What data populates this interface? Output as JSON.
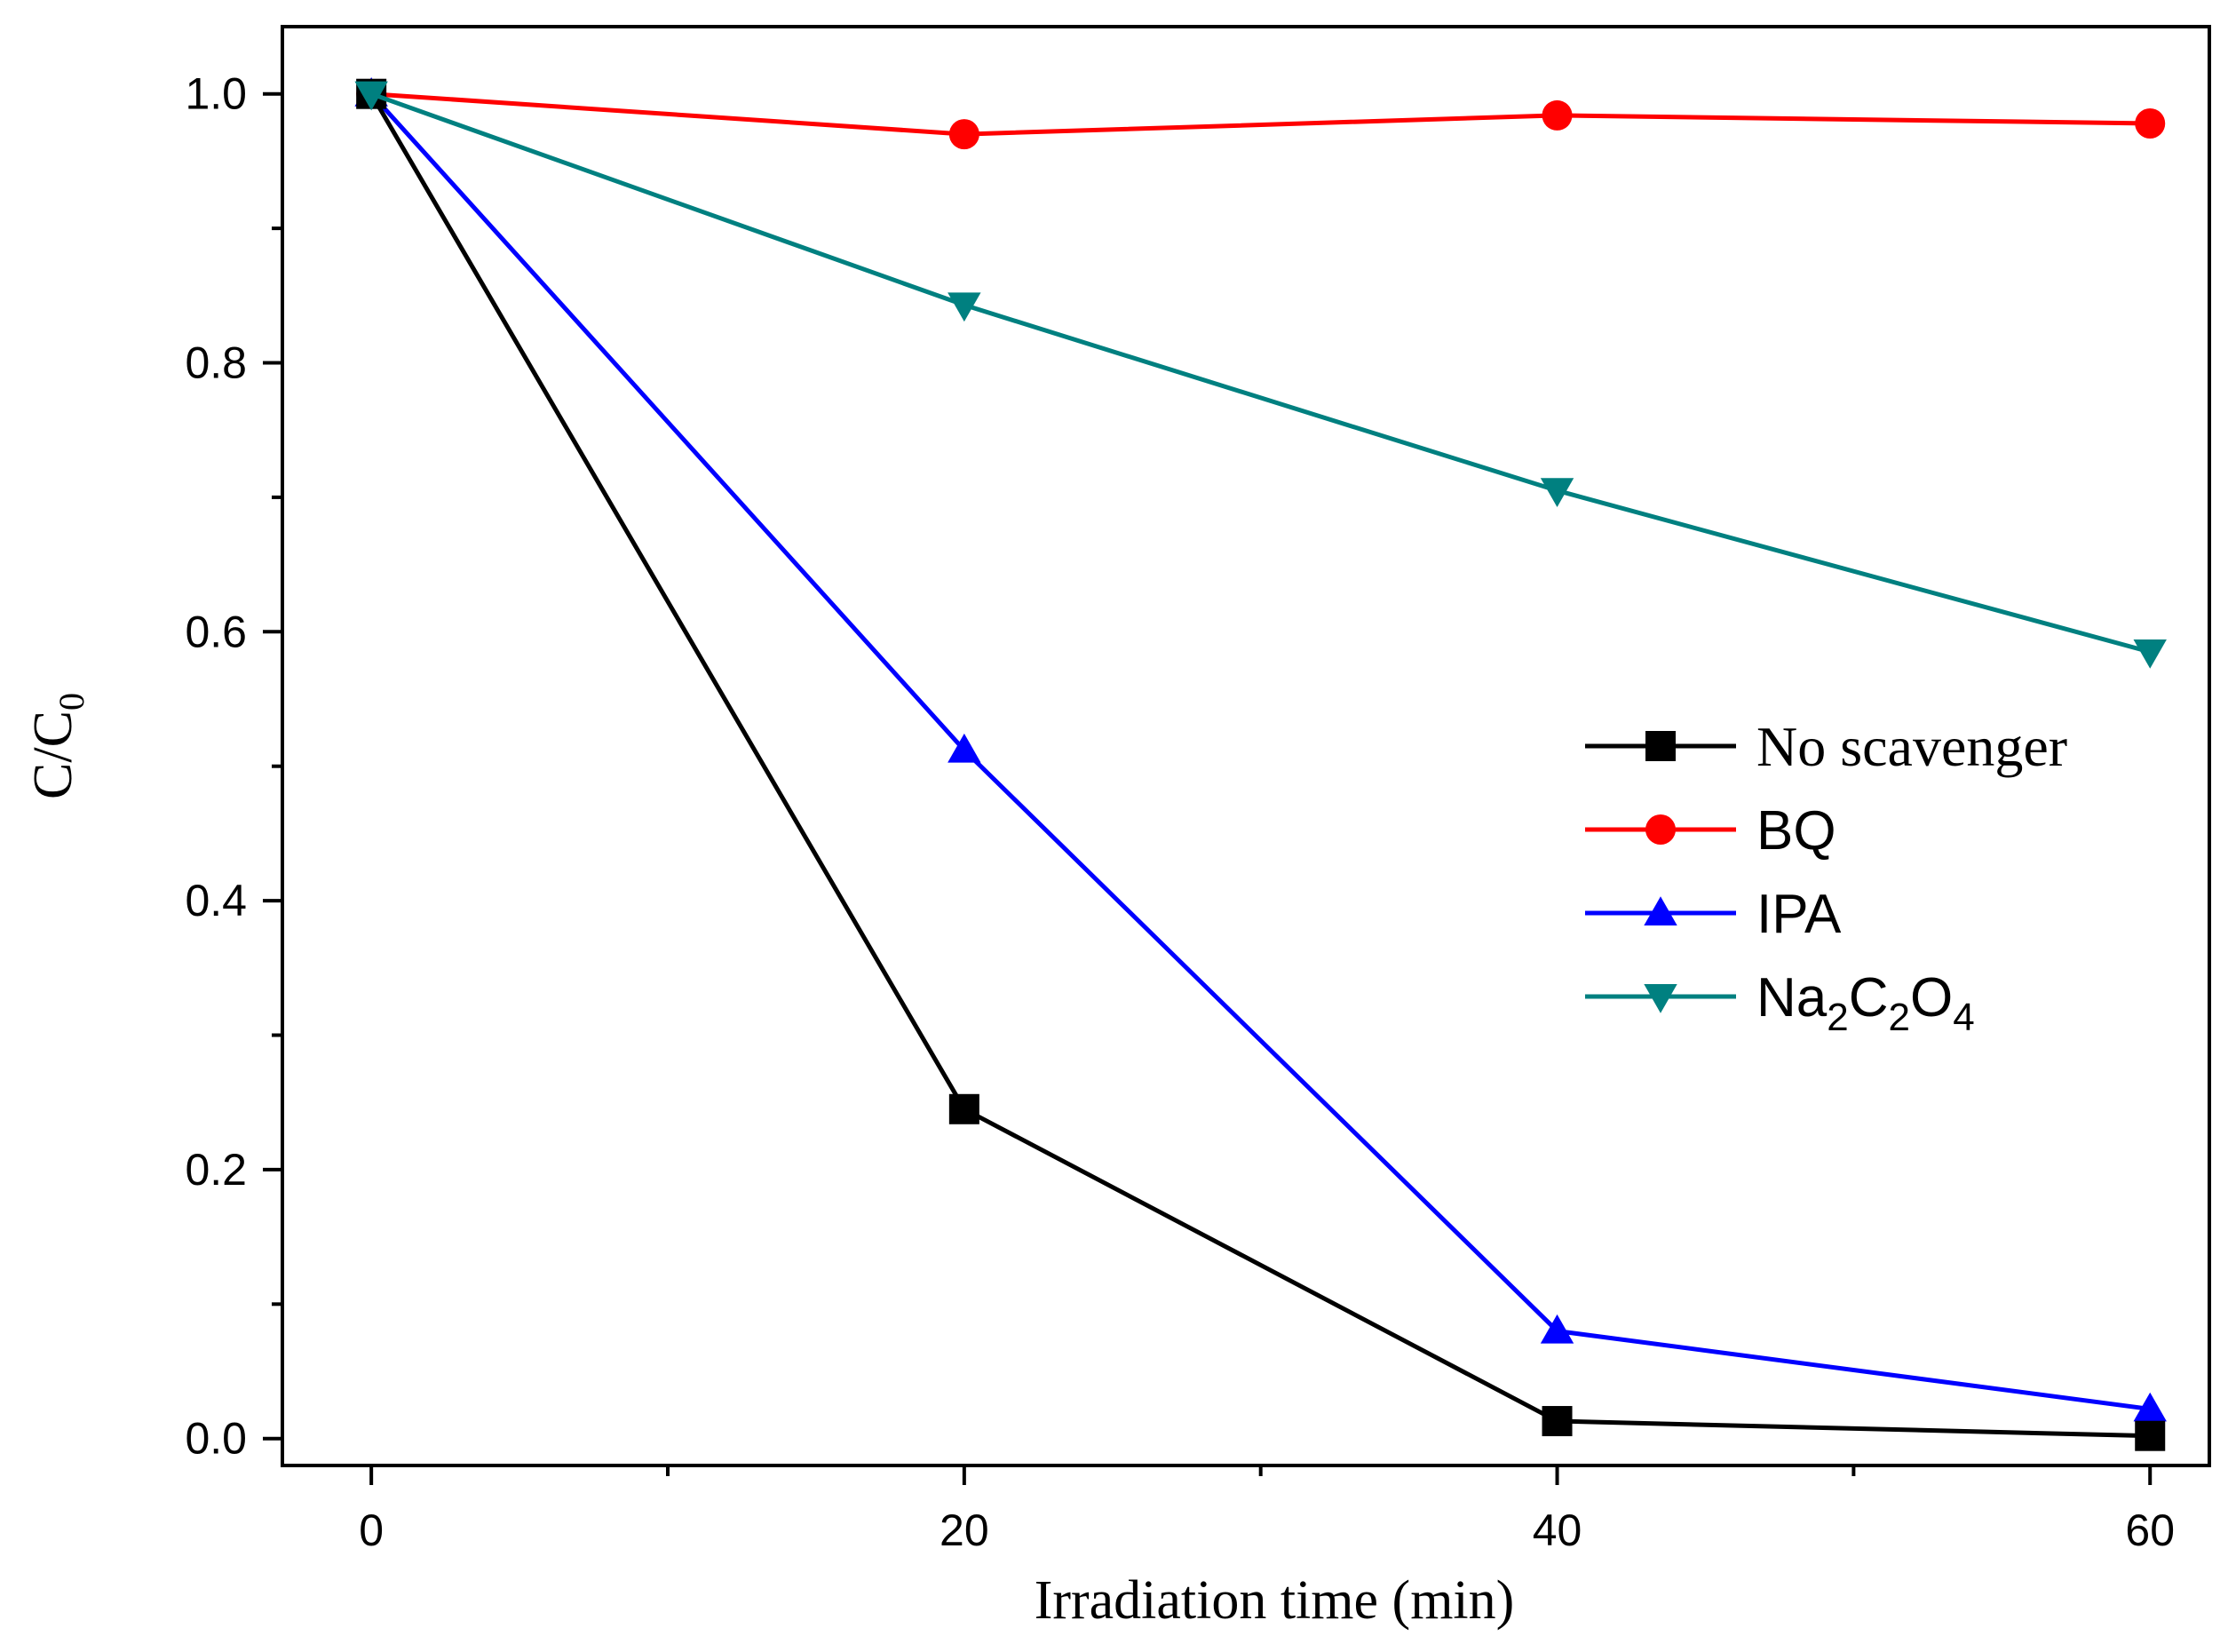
{
  "chart_data": {
    "type": "line",
    "title": "",
    "xlabel": "Irradiation time (min)",
    "ylabel": {
      "main": "C/C",
      "sub": "0"
    },
    "xlim": [
      -3,
      62
    ],
    "ylim": [
      -0.02,
      1.05
    ],
    "x_ticks": [
      0,
      20,
      40,
      60
    ],
    "x_minor_ticks": [
      10,
      30,
      50
    ],
    "y_ticks": [
      0.0,
      0.2,
      0.4,
      0.6,
      0.8,
      1.0
    ],
    "y_tick_labels": [
      "0.0",
      "0.2",
      "0.4",
      "0.6",
      "0.8",
      "1.0"
    ],
    "y_minor_ticks": [
      0.1,
      0.3,
      0.5,
      0.7,
      0.9
    ],
    "grid": false,
    "legend_position": "center-right",
    "series": [
      {
        "name": "No scavenger",
        "color": "#000000",
        "marker": "square",
        "x": [
          0,
          20,
          40,
          60
        ],
        "y": [
          1.0,
          0.245,
          0.013,
          0.002
        ]
      },
      {
        "name": "BQ",
        "color": "#ff0000",
        "marker": "circle",
        "x": [
          0,
          20,
          40,
          60
        ],
        "y": [
          1.0,
          0.97,
          0.984,
          0.978
        ]
      },
      {
        "name": "IPA",
        "color": "#0000ff",
        "marker": "triangle-up",
        "x": [
          0,
          20,
          40,
          60
        ],
        "y": [
          1.0,
          0.512,
          0.08,
          0.022
        ]
      },
      {
        "name": "Na2C2O4",
        "color": "#008080",
        "marker": "triangle-down",
        "x": [
          0,
          20,
          40,
          60
        ],
        "y": [
          1.0,
          0.843,
          0.705,
          0.585
        ],
        "label_parts": [
          {
            "text": "Na",
            "sub": false
          },
          {
            "text": "2",
            "sub": true
          },
          {
            "text": "C",
            "sub": false
          },
          {
            "text": "2",
            "sub": true
          },
          {
            "text": "O",
            "sub": false
          },
          {
            "text": "4",
            "sub": true
          }
        ]
      }
    ]
  }
}
